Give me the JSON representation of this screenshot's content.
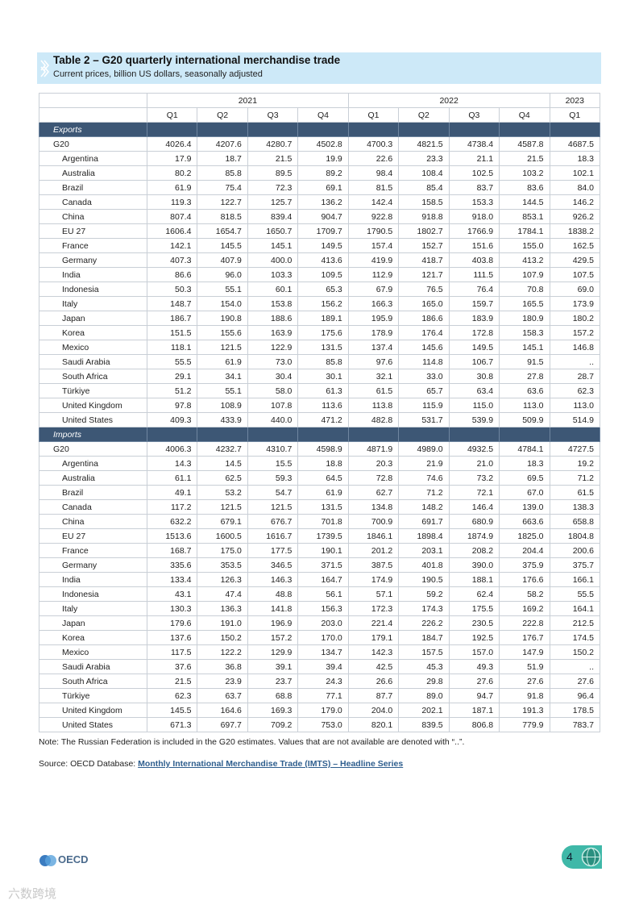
{
  "header": {
    "title": "Table 2 – G20 quarterly international merchandise trade",
    "subtitle": "Current prices, billion US dollars, seasonally adjusted"
  },
  "table": {
    "years": [
      "2021",
      "2022",
      "2023"
    ],
    "quarters": [
      "Q1",
      "Q2",
      "Q3",
      "Q4",
      "Q1",
      "Q2",
      "Q3",
      "Q4",
      "Q1"
    ],
    "sections": [
      {
        "name": "Exports",
        "rows": [
          {
            "label": "G20",
            "values": [
              "4026.4",
              "4207.6",
              "4280.7",
              "4502.8",
              "4700.3",
              "4821.5",
              "4738.4",
              "4587.8",
              "4687.5"
            ]
          },
          {
            "label": "Argentina",
            "values": [
              "17.9",
              "18.7",
              "21.5",
              "19.9",
              "22.6",
              "23.3",
              "21.1",
              "21.5",
              "18.3"
            ]
          },
          {
            "label": "Australia",
            "values": [
              "80.2",
              "85.8",
              "89.5",
              "89.2",
              "98.4",
              "108.4",
              "102.5",
              "103.2",
              "102.1"
            ]
          },
          {
            "label": "Brazil",
            "values": [
              "61.9",
              "75.4",
              "72.3",
              "69.1",
              "81.5",
              "85.4",
              "83.7",
              "83.6",
              "84.0"
            ]
          },
          {
            "label": "Canada",
            "values": [
              "119.3",
              "122.7",
              "125.7",
              "136.2",
              "142.4",
              "158.5",
              "153.3",
              "144.5",
              "146.2"
            ]
          },
          {
            "label": "China",
            "values": [
              "807.4",
              "818.5",
              "839.4",
              "904.7",
              "922.8",
              "918.8",
              "918.0",
              "853.1",
              "926.2"
            ]
          },
          {
            "label": "EU 27",
            "values": [
              "1606.4",
              "1654.7",
              "1650.7",
              "1709.7",
              "1790.5",
              "1802.7",
              "1766.9",
              "1784.1",
              "1838.2"
            ]
          },
          {
            "label": "France",
            "values": [
              "142.1",
              "145.5",
              "145.1",
              "149.5",
              "157.4",
              "152.7",
              "151.6",
              "155.0",
              "162.5"
            ]
          },
          {
            "label": "Germany",
            "values": [
              "407.3",
              "407.9",
              "400.0",
              "413.6",
              "419.9",
              "418.7",
              "403.8",
              "413.2",
              "429.5"
            ]
          },
          {
            "label": "India",
            "values": [
              "86.6",
              "96.0",
              "103.3",
              "109.5",
              "112.9",
              "121.7",
              "111.5",
              "107.9",
              "107.5"
            ]
          },
          {
            "label": "Indonesia",
            "values": [
              "50.3",
              "55.1",
              "60.1",
              "65.3",
              "67.9",
              "76.5",
              "76.4",
              "70.8",
              "69.0"
            ]
          },
          {
            "label": "Italy",
            "values": [
              "148.7",
              "154.0",
              "153.8",
              "156.2",
              "166.3",
              "165.0",
              "159.7",
              "165.5",
              "173.9"
            ]
          },
          {
            "label": "Japan",
            "values": [
              "186.7",
              "190.8",
              "188.6",
              "189.1",
              "195.9",
              "186.6",
              "183.9",
              "180.9",
              "180.2"
            ]
          },
          {
            "label": "Korea",
            "values": [
              "151.5",
              "155.6",
              "163.9",
              "175.6",
              "178.9",
              "176.4",
              "172.8",
              "158.3",
              "157.2"
            ]
          },
          {
            "label": "Mexico",
            "values": [
              "118.1",
              "121.5",
              "122.9",
              "131.5",
              "137.4",
              "145.6",
              "149.5",
              "145.1",
              "146.8"
            ]
          },
          {
            "label": "Saudi Arabia",
            "values": [
              "55.5",
              "61.9",
              "73.0",
              "85.8",
              "97.6",
              "114.8",
              "106.7",
              "91.5",
              ".."
            ]
          },
          {
            "label": "South Africa",
            "values": [
              "29.1",
              "34.1",
              "30.4",
              "30.1",
              "32.1",
              "33.0",
              "30.8",
              "27.8",
              "28.7"
            ]
          },
          {
            "label": "Türkiye",
            "values": [
              "51.2",
              "55.1",
              "58.0",
              "61.3",
              "61.5",
              "65.7",
              "63.4",
              "63.6",
              "62.3"
            ]
          },
          {
            "label": "United Kingdom",
            "values": [
              "97.8",
              "108.9",
              "107.8",
              "113.6",
              "113.8",
              "115.9",
              "115.0",
              "113.0",
              "113.0"
            ]
          },
          {
            "label": "United States",
            "values": [
              "409.3",
              "433.9",
              "440.0",
              "471.2",
              "482.8",
              "531.7",
              "539.9",
              "509.9",
              "514.9"
            ]
          }
        ]
      },
      {
        "name": "Imports",
        "rows": [
          {
            "label": "G20",
            "values": [
              "4006.3",
              "4232.7",
              "4310.7",
              "4598.9",
              "4871.9",
              "4989.0",
              "4932.5",
              "4784.1",
              "4727.5"
            ]
          },
          {
            "label": "Argentina",
            "values": [
              "14.3",
              "14.5",
              "15.5",
              "18.8",
              "20.3",
              "21.9",
              "21.0",
              "18.3",
              "19.2"
            ]
          },
          {
            "label": "Australia",
            "values": [
              "61.1",
              "62.5",
              "59.3",
              "64.5",
              "72.8",
              "74.6",
              "73.2",
              "69.5",
              "71.2"
            ]
          },
          {
            "label": "Brazil",
            "values": [
              "49.1",
              "53.2",
              "54.7",
              "61.9",
              "62.7",
              "71.2",
              "72.1",
              "67.0",
              "61.5"
            ]
          },
          {
            "label": "Canada",
            "values": [
              "117.2",
              "121.5",
              "121.5",
              "131.5",
              "134.8",
              "148.2",
              "146.4",
              "139.0",
              "138.3"
            ]
          },
          {
            "label": "China",
            "values": [
              "632.2",
              "679.1",
              "676.7",
              "701.8",
              "700.9",
              "691.7",
              "680.9",
              "663.6",
              "658.8"
            ]
          },
          {
            "label": "EU 27",
            "values": [
              "1513.6",
              "1600.5",
              "1616.7",
              "1739.5",
              "1846.1",
              "1898.4",
              "1874.9",
              "1825.0",
              "1804.8"
            ]
          },
          {
            "label": "France",
            "values": [
              "168.7",
              "175.0",
              "177.5",
              "190.1",
              "201.2",
              "203.1",
              "208.2",
              "204.4",
              "200.6"
            ]
          },
          {
            "label": "Germany",
            "values": [
              "335.6",
              "353.5",
              "346.5",
              "371.5",
              "387.5",
              "401.8",
              "390.0",
              "375.9",
              "375.7"
            ]
          },
          {
            "label": "India",
            "values": [
              "133.4",
              "126.3",
              "146.3",
              "164.7",
              "174.9",
              "190.5",
              "188.1",
              "176.6",
              "166.1"
            ]
          },
          {
            "label": "Indonesia",
            "values": [
              "43.1",
              "47.4",
              "48.8",
              "56.1",
              "57.1",
              "59.2",
              "62.4",
              "58.2",
              "55.5"
            ]
          },
          {
            "label": "Italy",
            "values": [
              "130.3",
              "136.3",
              "141.8",
              "156.3",
              "172.3",
              "174.3",
              "175.5",
              "169.2",
              "164.1"
            ]
          },
          {
            "label": "Japan",
            "values": [
              "179.6",
              "191.0",
              "196.9",
              "203.0",
              "221.4",
              "226.2",
              "230.5",
              "222.8",
              "212.5"
            ]
          },
          {
            "label": "Korea",
            "values": [
              "137.6",
              "150.2",
              "157.2",
              "170.0",
              "179.1",
              "184.7",
              "192.5",
              "176.7",
              "174.5"
            ]
          },
          {
            "label": "Mexico",
            "values": [
              "117.5",
              "122.2",
              "129.9",
              "134.7",
              "142.3",
              "157.5",
              "157.0",
              "147.9",
              "150.2"
            ]
          },
          {
            "label": "Saudi Arabia",
            "values": [
              "37.6",
              "36.8",
              "39.1",
              "39.4",
              "42.5",
              "45.3",
              "49.3",
              "51.9",
              ".."
            ]
          },
          {
            "label": "South Africa",
            "values": [
              "21.5",
              "23.9",
              "23.7",
              "24.3",
              "26.6",
              "29.8",
              "27.6",
              "27.6",
              "27.6"
            ]
          },
          {
            "label": "Türkiye",
            "values": [
              "62.3",
              "63.7",
              "68.8",
              "77.1",
              "87.7",
              "89.0",
              "94.7",
              "91.8",
              "96.4"
            ]
          },
          {
            "label": "United Kingdom",
            "values": [
              "145.5",
              "164.6",
              "169.3",
              "179.0",
              "204.0",
              "202.1",
              "187.1",
              "191.3",
              "178.5"
            ]
          },
          {
            "label": "United States",
            "values": [
              "671.3",
              "697.7",
              "709.2",
              "753.0",
              "820.1",
              "839.5",
              "806.8",
              "779.9",
              "783.7"
            ]
          }
        ]
      }
    ]
  },
  "note": "Note: The Russian Federation is included in the G20 estimates. Values that are not available are denoted with “..”.",
  "source": {
    "prefix": "Source: OECD Database:",
    "link": "Monthly International Merchandise Trade (IMTS) – Headline Series"
  },
  "footer": {
    "logo": "OECD",
    "page": "4",
    "watermark": "六数跨境"
  }
}
